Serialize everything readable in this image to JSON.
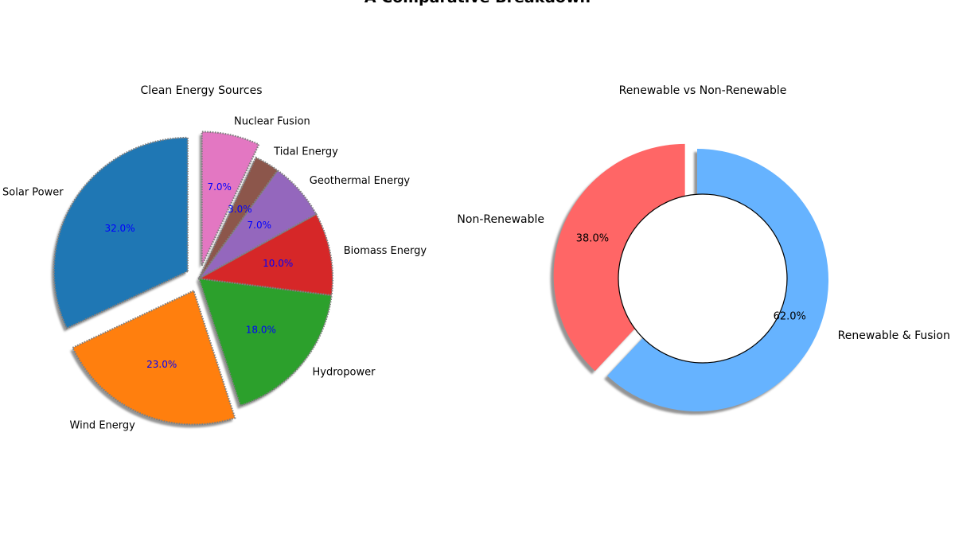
{
  "figure": {
    "title": "A Comparative Breakdown"
  },
  "chart_data": [
    {
      "type": "pie",
      "title": "Clean Energy Sources",
      "start_angle_deg": 90,
      "direction": "counterclockwise",
      "shadow": true,
      "edge_style": "dotted",
      "label_color": "#000000",
      "pct_color": "#0000ff",
      "slices": [
        {
          "label": "Solar Power",
          "value": 32,
          "pct_label": "32.0%",
          "color": "#1f77b4",
          "explode": 0.1
        },
        {
          "label": "Wind Energy",
          "value": 23,
          "pct_label": "23.0%",
          "color": "#ff7f0e",
          "explode": 0.1
        },
        {
          "label": "Hydropower",
          "value": 18,
          "pct_label": "18.0%",
          "color": "#2ca02c",
          "explode": 0.0
        },
        {
          "label": "Biomass Energy",
          "value": 10,
          "pct_label": "10.0%",
          "color": "#d62728",
          "explode": 0.0
        },
        {
          "label": "Geothermal Energy",
          "value": 7,
          "pct_label": "7.0%",
          "color": "#9467bd",
          "explode": 0.0
        },
        {
          "label": "Tidal Energy",
          "value": 3,
          "pct_label": "3.0%",
          "color": "#8c564b",
          "explode": 0.0
        },
        {
          "label": "Nuclear Fusion",
          "value": 7,
          "pct_label": "7.0%",
          "color": "#e377c2",
          "explode": 0.1
        }
      ]
    },
    {
      "type": "pie",
      "style": "donut",
      "title": "Renewable vs Non-Renewable",
      "start_angle_deg": 90,
      "direction": "clockwise",
      "shadow": true,
      "label_color": "#000000",
      "pct_color": "#000000",
      "slices": [
        {
          "label": "Renewable & Fusion",
          "value": 62,
          "pct_label": "62.0%",
          "color": "#66b3ff",
          "explode": 0.0
        },
        {
          "label": "Non-Renewable",
          "value": 38,
          "pct_label": "38.0%",
          "color": "#ff6666",
          "explode": 0.1
        }
      ]
    }
  ]
}
